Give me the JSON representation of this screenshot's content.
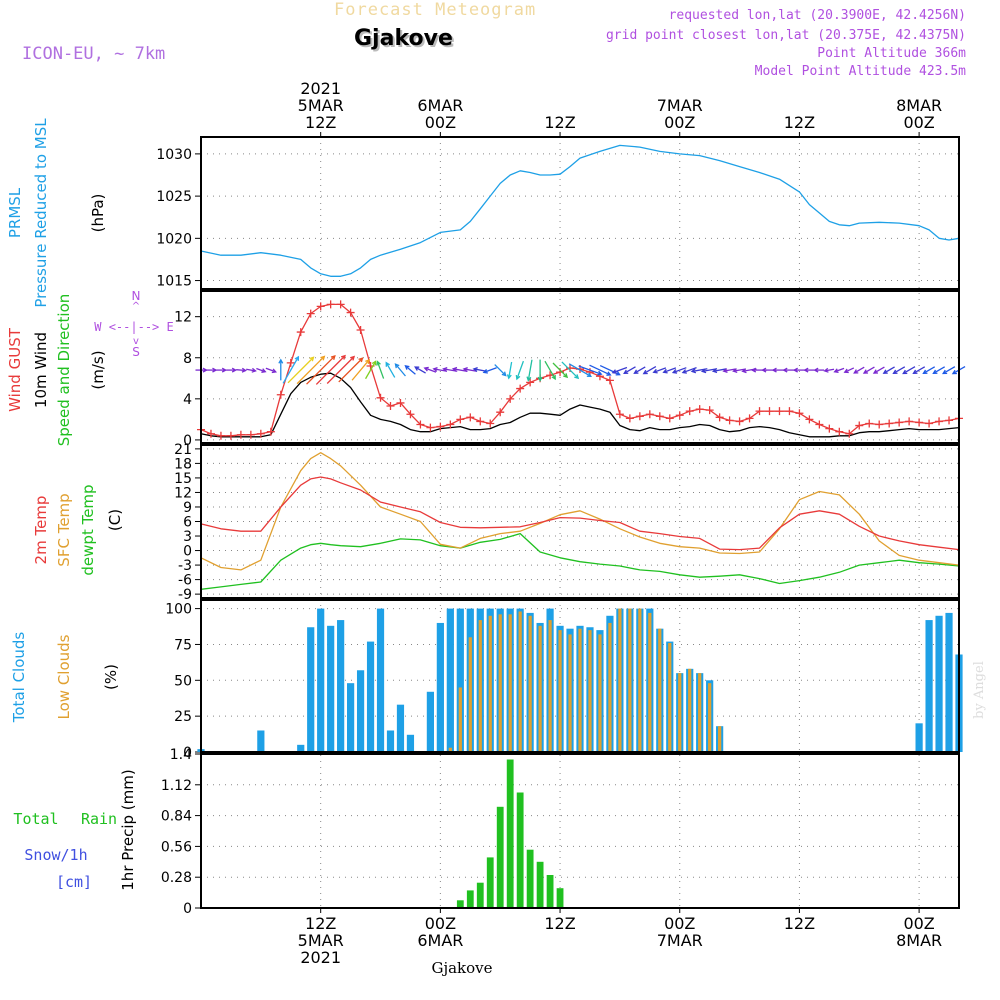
{
  "header": {
    "title": "Forecast Meteogram",
    "station": "Gjakove",
    "model": "ICON-EU, ~ 7km",
    "requested": "requested lon,lat (20.3900E, 42.4256N)",
    "gridpoint": "grid point closest lon,lat (20.375E, 42.4375N)",
    "point_alt": "Point Altitude 366m",
    "model_alt": "Model Point Altitude 423.5m",
    "footer": "Gjakove",
    "credit": "by Angel"
  },
  "colors": {
    "pressure": "#1ea0e6",
    "gust": "#e83a3a",
    "wind": "#000000",
    "winddir": "#20c020",
    "temp": "#e83a3a",
    "sfc": "#e0a030",
    "dew": "#20c020",
    "total_clouds": "#1ea0e6",
    "low_clouds": "#e0a030",
    "rain": "#20c020",
    "snow": "#4050e0",
    "info": "#b050e0",
    "grid": "#888888"
  },
  "time_axis": {
    "top_labels": [
      {
        "h": 12,
        "lines": [
          "2021",
          "5MAR",
          "12Z"
        ]
      },
      {
        "h": 24,
        "lines": [
          "6MAR",
          "00Z"
        ]
      },
      {
        "h": 36,
        "lines": [
          "12Z"
        ]
      },
      {
        "h": 48,
        "lines": [
          "7MAR",
          "00Z"
        ]
      },
      {
        "h": 60,
        "lines": [
          "12Z"
        ]
      },
      {
        "h": 72,
        "lines": [
          "8MAR",
          "00Z"
        ]
      }
    ],
    "bottom_labels": [
      {
        "h": 12,
        "lines": [
          "12Z",
          "5MAR",
          "2021"
        ]
      },
      {
        "h": 24,
        "lines": [
          "00Z",
          "6MAR"
        ]
      },
      {
        "h": 36,
        "lines": [
          "12Z"
        ]
      },
      {
        "h": 48,
        "lines": [
          "00Z",
          "7MAR"
        ]
      },
      {
        "h": 60,
        "lines": [
          "12Z"
        ]
      },
      {
        "h": 72,
        "lines": [
          "00Z",
          "8MAR"
        ]
      }
    ],
    "h_start": 0,
    "h_end": 76
  },
  "panel_labels": {
    "pressure": [
      "PRMSL",
      "Pressure Reduced to MSL",
      "(hPa)"
    ],
    "wind": [
      "Wind GUST",
      "10m Wind",
      "Speed and Direction",
      "(m/s)"
    ],
    "compass": [
      "N",
      "S",
      "W <--|--> E",
      "^",
      "v"
    ],
    "temp": [
      "2m Temp",
      "SFC Temp",
      "dewpt Temp",
      "(C)"
    ],
    "clouds": [
      "Total Clouds",
      "Low Clouds",
      "(%)"
    ],
    "precip": [
      "Total",
      "Rain",
      "Snow/1h",
      "[cm]",
      "1hr Precip (mm)"
    ]
  },
  "chart_data": [
    {
      "type": "line",
      "title": "PRMSL Pressure Reduced to MSL",
      "ylabel": "(hPa)",
      "ylim": [
        1014,
        1032
      ],
      "yticks": [
        1015,
        1020,
        1025,
        1030
      ],
      "x_hours": [
        0,
        2,
        4,
        6,
        8,
        10,
        11,
        12,
        13,
        14,
        15,
        16,
        17,
        18,
        20,
        22,
        24,
        26,
        27,
        28,
        29,
        30,
        31,
        32,
        33,
        34,
        35,
        36,
        37,
        38,
        40,
        42,
        44,
        46,
        48,
        50,
        52,
        54,
        56,
        58,
        60,
        61,
        62,
        63,
        64,
        65,
        66,
        68,
        70,
        72,
        73,
        74,
        75,
        76
      ],
      "series": [
        {
          "name": "PRMSL",
          "values": [
            1018.5,
            1018,
            1018,
            1018.3,
            1018,
            1017.5,
            1016.5,
            1015.8,
            1015.5,
            1015.5,
            1015.8,
            1016.5,
            1017.5,
            1018,
            1018.7,
            1019.5,
            1020.7,
            1021,
            1022,
            1023.5,
            1025,
            1026.5,
            1027.5,
            1028,
            1027.8,
            1027.5,
            1027.5,
            1027.6,
            1028.5,
            1029.5,
            1030.3,
            1031,
            1030.8,
            1030.3,
            1030,
            1029.8,
            1029.2,
            1028.5,
            1027.8,
            1027,
            1025.5,
            1024,
            1023,
            1022,
            1021.6,
            1021.5,
            1021.8,
            1021.9,
            1021.8,
            1021.5,
            1021,
            1020,
            1019.8,
            1020
          ]
        }
      ]
    },
    {
      "type": "line",
      "title": "Wind GUST / 10m Wind Speed and Direction",
      "ylabel": "(m/s)",
      "ylim": [
        -0.3,
        14.5
      ],
      "yticks": [
        0,
        4,
        8,
        12
      ],
      "x_hours": [
        0,
        1,
        2,
        3,
        4,
        5,
        6,
        7,
        8,
        9,
        10,
        11,
        12,
        13,
        14,
        15,
        16,
        17,
        18,
        19,
        20,
        21,
        22,
        23,
        24,
        25,
        26,
        27,
        28,
        29,
        30,
        31,
        32,
        33,
        34,
        35,
        36,
        37,
        38,
        39,
        40,
        41,
        42,
        43,
        44,
        45,
        46,
        47,
        48,
        49,
        50,
        51,
        52,
        53,
        54,
        55,
        56,
        57,
        58,
        59,
        60,
        61,
        62,
        63,
        64,
        65,
        66,
        67,
        68,
        69,
        70,
        71,
        72,
        73,
        74,
        75,
        76
      ],
      "series": [
        {
          "name": "Wind GUST",
          "values": [
            1.0,
            0.6,
            0.4,
            0.4,
            0.5,
            0.5,
            0.6,
            0.8,
            4.4,
            7.5,
            10.5,
            12.3,
            13.0,
            13.2,
            13.2,
            12.4,
            10.7,
            7.2,
            4.1,
            3.3,
            3.6,
            2.5,
            1.5,
            1.2,
            1.3,
            1.5,
            2.0,
            2.2,
            1.8,
            1.6,
            2.7,
            4.0,
            5.0,
            5.6,
            6.0,
            6.3,
            6.6,
            7.0,
            6.9,
            6.6,
            6.2,
            5.8,
            2.5,
            2.1,
            2.3,
            2.5,
            2.3,
            2.1,
            2.4,
            2.8,
            3.0,
            2.9,
            2.2,
            1.9,
            1.8,
            2.1,
            2.8,
            2.8,
            2.8,
            2.8,
            2.6,
            2.0,
            1.5,
            1.1,
            0.8,
            0.6,
            1.4,
            1.6,
            1.5,
            1.6,
            1.7,
            1.8,
            1.7,
            1.6,
            1.8,
            1.9,
            2.1
          ]
        },
        {
          "name": "10m Wind",
          "values": [
            0.6,
            0.4,
            0.3,
            0.3,
            0.3,
            0.3,
            0.3,
            0.5,
            2.5,
            4.5,
            5.6,
            6.1,
            6.4,
            6.5,
            6.0,
            5.1,
            3.7,
            2.4,
            2.0,
            1.8,
            1.5,
            1.0,
            0.8,
            0.8,
            1.1,
            1.2,
            1.3,
            1.0,
            1.0,
            1.1,
            1.5,
            1.7,
            2.2,
            2.6,
            2.6,
            2.5,
            2.4,
            3.0,
            3.4,
            3.2,
            3.0,
            2.7,
            1.4,
            1.0,
            0.9,
            1.2,
            1.0,
            1.0,
            1.2,
            1.3,
            1.5,
            1.4,
            1.0,
            0.8,
            0.9,
            1.2,
            1.3,
            1.2,
            1.0,
            0.7,
            0.5,
            0.3,
            0.3,
            0.3,
            0.4,
            0.4,
            0.7,
            0.8,
            0.8,
            0.9,
            1.0,
            1.1,
            1.0,
            1.0,
            1.0,
            1.1,
            1.2
          ]
        }
      ]
    },
    {
      "type": "line",
      "title": "2m Temp / SFC Temp / dewpt Temp",
      "ylabel": "(C)",
      "ylim": [
        -9.8,
        21.8
      ],
      "yticks": [
        -9,
        -6,
        -3,
        0,
        3,
        6,
        9,
        12,
        15,
        18,
        21
      ],
      "x_hours": [
        0,
        2,
        4,
        6,
        8,
        10,
        11,
        12,
        13,
        14,
        16,
        18,
        20,
        22,
        24,
        26,
        28,
        30,
        32,
        34,
        36,
        38,
        40,
        42,
        44,
        46,
        48,
        50,
        52,
        54,
        56,
        58,
        60,
        62,
        64,
        66,
        68,
        70,
        72,
        74,
        76
      ],
      "series": [
        {
          "name": "2m Temp",
          "values": [
            5.5,
            4.5,
            4.0,
            4.0,
            9.0,
            13.5,
            14.8,
            15.2,
            14.8,
            14.0,
            12.5,
            10.0,
            9.0,
            8.0,
            5.8,
            4.8,
            4.7,
            4.8,
            4.9,
            5.8,
            6.8,
            6.7,
            6.2,
            5.8,
            4.0,
            3.5,
            2.9,
            2.5,
            0.3,
            0.2,
            0.5,
            4.7,
            7.5,
            8.2,
            7.5,
            5.0,
            3.0,
            2.0,
            1.2,
            0.7,
            0.2
          ]
        },
        {
          "name": "SFC Temp",
          "values": [
            -1.5,
            -3.5,
            -4.0,
            -2.0,
            9.0,
            16.5,
            19.0,
            20.2,
            19.0,
            17.5,
            13.5,
            9.0,
            7.5,
            6.0,
            1.3,
            0.5,
            2.5,
            3.5,
            4.0,
            5.6,
            7.4,
            8.2,
            6.5,
            4.5,
            2.8,
            1.5,
            0.8,
            0.5,
            -0.5,
            -0.6,
            -0.3,
            4.5,
            10.5,
            12.2,
            11.5,
            7.5,
            2.0,
            -1.0,
            -2.0,
            -2.5,
            -3.0
          ]
        },
        {
          "name": "dewpt Temp",
          "values": [
            -8.0,
            -7.5,
            -7.0,
            -6.5,
            -2.0,
            0.5,
            1.2,
            1.5,
            1.2,
            1.0,
            0.8,
            1.5,
            2.4,
            2.2,
            1.0,
            0.5,
            1.7,
            2.3,
            3.5,
            -0.3,
            -1.5,
            -2.3,
            -2.8,
            -3.2,
            -4.0,
            -4.3,
            -5.0,
            -5.5,
            -5.3,
            -5.0,
            -5.8,
            -6.8,
            -6.2,
            -5.5,
            -4.5,
            -3.0,
            -2.5,
            -2.0,
            -2.5,
            -2.8,
            -3.2
          ]
        }
      ]
    },
    {
      "type": "bar",
      "title": "Total Clouds / Low Clouds",
      "ylabel": "(%)",
      "ylim": [
        0,
        106
      ],
      "yticks": [
        0,
        25,
        50,
        75,
        100
      ],
      "x_hours": [
        0,
        1,
        2,
        3,
        4,
        5,
        6,
        7,
        8,
        9,
        10,
        11,
        12,
        13,
        14,
        15,
        16,
        17,
        18,
        19,
        20,
        21,
        22,
        23,
        24,
        25,
        26,
        27,
        28,
        29,
        30,
        31,
        32,
        33,
        34,
        35,
        36,
        37,
        38,
        39,
        40,
        41,
        42,
        43,
        44,
        45,
        46,
        47,
        48,
        49,
        50,
        51,
        52,
        53,
        54,
        55,
        56,
        57,
        58,
        59,
        60,
        61,
        62,
        63,
        64,
        65,
        66,
        67,
        68,
        69,
        70,
        71,
        72,
        73,
        74,
        75,
        76
      ],
      "series": [
        {
          "name": "Total Clouds",
          "values": [
            2,
            0,
            0,
            0,
            0,
            0,
            15,
            0,
            0,
            0,
            5,
            87,
            100,
            88,
            92,
            48,
            57,
            77,
            100,
            15,
            33,
            12,
            0,
            42,
            90,
            100,
            100,
            100,
            100,
            100,
            100,
            100,
            100,
            97,
            90,
            100,
            88,
            86,
            88,
            87,
            85,
            95,
            100,
            100,
            100,
            100,
            86,
            77,
            55,
            58,
            55,
            50,
            18,
            0,
            0,
            0,
            0,
            0,
            0,
            0,
            0,
            0,
            0,
            0,
            0,
            0,
            0,
            0,
            0,
            0,
            0,
            0,
            20,
            92,
            95,
            97,
            68
          ]
        },
        {
          "name": "Low Clouds",
          "values": [
            0,
            0,
            0,
            0,
            0,
            0,
            0,
            0,
            0,
            0,
            0,
            0,
            0,
            0,
            0,
            0,
            0,
            0,
            0,
            0,
            0,
            0,
            0,
            0,
            0,
            3,
            45,
            80,
            92,
            95,
            96,
            96,
            98,
            95,
            88,
            92,
            85,
            82,
            86,
            85,
            82,
            90,
            100,
            100,
            100,
            97,
            86,
            76,
            55,
            58,
            55,
            48,
            18,
            0,
            0,
            0,
            0,
            0,
            0,
            0,
            0,
            0,
            0,
            0,
            0,
            0,
            0,
            0,
            0,
            0,
            0,
            0,
            0,
            0,
            0,
            0,
            0
          ]
        }
      ]
    },
    {
      "type": "bar",
      "title": "1hr Precip",
      "ylabel": "1hr Precip (mm)",
      "ylim": [
        0,
        1.4
      ],
      "yticks": [
        0,
        0.28,
        0.56,
        0.84,
        1.12,
        1.4
      ],
      "ytick_labels": [
        "0",
        "0.28",
        "0.56",
        "0.84",
        "1.12",
        "1.4"
      ],
      "x_hours": [
        26,
        27,
        28,
        29,
        30,
        31,
        32,
        33,
        34,
        35,
        36
      ],
      "series": [
        {
          "name": "Total Rain",
          "values": [
            0.07,
            0.16,
            0.23,
            0.46,
            0.92,
            1.35,
            1.05,
            0.53,
            0.42,
            0.3,
            0.18
          ]
        },
        {
          "name": "Snow/1h",
          "values": [
            0,
            0,
            0,
            0,
            0,
            0,
            0,
            0,
            0,
            0,
            0
          ]
        }
      ]
    }
  ],
  "wind_barbs": {
    "x_hours": [
      0,
      1,
      2,
      3,
      4,
      5,
      6,
      7,
      8,
      9,
      10,
      11,
      12,
      13,
      14,
      15,
      16,
      17,
      18,
      19,
      20,
      21,
      22,
      23,
      24,
      25,
      26,
      27,
      28,
      29,
      30,
      31,
      32,
      33,
      34,
      35,
      36,
      37,
      38,
      39,
      40,
      41,
      42,
      43,
      44,
      45,
      46,
      47,
      48,
      49,
      50,
      51,
      52,
      53,
      54,
      55,
      56,
      57,
      58,
      59,
      60,
      61,
      62,
      63,
      64,
      65,
      66,
      67,
      68,
      69,
      70,
      71,
      72,
      73,
      74,
      75,
      76
    ],
    "dir_deg": [
      90,
      90,
      90,
      90,
      95,
      100,
      110,
      110,
      0,
      30,
      45,
      45,
      45,
      45,
      45,
      45,
      40,
      30,
      340,
      330,
      320,
      310,
      300,
      290,
      280,
      280,
      280,
      280,
      280,
      250,
      135,
      190,
      200,
      190,
      180,
      150,
      135,
      135,
      120,
      110,
      115,
      115,
      250,
      240,
      240,
      240,
      250,
      250,
      250,
      250,
      260,
      260,
      260,
      260,
      260,
      260,
      270,
      270,
      270,
      270,
      270,
      270,
      270,
      260,
      250,
      245,
      240,
      240,
      240,
      240,
      240,
      240,
      240,
      240,
      240,
      240,
      240
    ],
    "color": [
      "#7a2ad0",
      "#7a2ad0",
      "#7a2ad0",
      "#7a2ad0",
      "#7a2ad0",
      "#7a2ad0",
      "#7a2ad0",
      "#7a2ad0",
      "#1e8ae6",
      "#2aa8f0",
      "#e8d020",
      "#f0a020",
      "#e85020",
      "#e83a3a",
      "#e83a3a",
      "#e85020",
      "#f0a020",
      "#80d020",
      "#30c060",
      "#20b0e0",
      "#1e8ae6",
      "#1e5ae6",
      "#3a3ad0",
      "#7a2ad0",
      "#7a2ad0",
      "#7a2ad0",
      "#7a2ad0",
      "#7a2ad0",
      "#3a3ad0",
      "#1e5ae6",
      "#1e8ae6",
      "#20c0d0",
      "#20c0c0",
      "#20c0a0",
      "#20c080",
      "#30c060",
      "#40c040",
      "#20c0c0",
      "#1e8ae6",
      "#1e5ae6",
      "#1e5ae6",
      "#1e5ae6",
      "#3a3ad0",
      "#3a3ad0",
      "#3a3ad0",
      "#3a3ad0",
      "#3a3ad0",
      "#3a3ad0",
      "#3a3ad0",
      "#3a3ad0",
      "#3a3ad0",
      "#3a3ad0",
      "#3a3ad0",
      "#7a2ad0",
      "#7a2ad0",
      "#7a2ad0",
      "#7a2ad0",
      "#7a2ad0",
      "#7a2ad0",
      "#7a2ad0",
      "#7a2ad0",
      "#7a2ad0",
      "#7a2ad0",
      "#7a2ad0",
      "#7a2ad0",
      "#7a2ad0",
      "#7a2ad0",
      "#7a2ad0",
      "#7a2ad0",
      "#3a3ad0",
      "#3a3ad0",
      "#3a3ad0",
      "#3a3ad0",
      "#1e5ae6",
      "#1e5ae6",
      "#1e5ae6",
      "#1e5ae6"
    ]
  }
}
